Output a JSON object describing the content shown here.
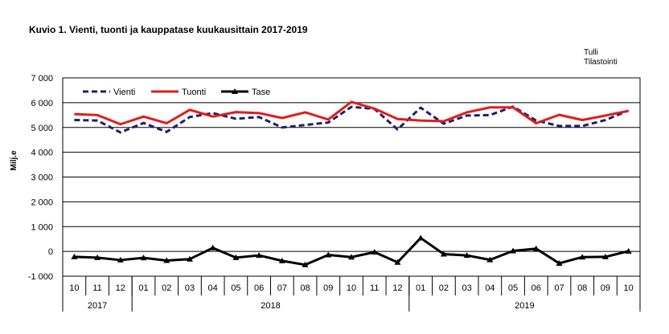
{
  "title": "Kuvio  1. Vienti, tuonti ja kauppatase kuukausittain 2017-2019",
  "source": [
    "Tulli",
    "Tilastointi"
  ],
  "chart_data": {
    "type": "line",
    "ylabel": "Milj.e",
    "ylim": [
      -1000,
      7000
    ],
    "yticks": [
      -1000,
      0,
      1000,
      2000,
      3000,
      4000,
      5000,
      6000,
      7000
    ],
    "ytick_labels": [
      "-1 000",
      "0",
      "1 000",
      "2 000",
      "3 000",
      "4 000",
      "5 000",
      "6 000",
      "7 000"
    ],
    "grid": true,
    "legend_position": "top-left",
    "categories": [
      "10",
      "11",
      "12",
      "01",
      "02",
      "03",
      "04",
      "05",
      "06",
      "07",
      "08",
      "09",
      "10",
      "11",
      "12",
      "01",
      "02",
      "03",
      "04",
      "05",
      "06",
      "07",
      "08",
      "09",
      "10"
    ],
    "years": [
      {
        "label": "2017",
        "span": 3
      },
      {
        "label": "2018",
        "span": 12
      },
      {
        "label": "2019",
        "span": 10
      }
    ],
    "series": [
      {
        "name": "Vienti",
        "color": "#1f1f6e",
        "style": "dashed",
        "values": [
          5300,
          5280,
          4800,
          5180,
          4820,
          5420,
          5580,
          5350,
          5420,
          5000,
          5100,
          5200,
          5830,
          5750,
          4920,
          5800,
          5150,
          5480,
          5500,
          5840,
          5280,
          5060,
          5060,
          5300,
          5680
        ]
      },
      {
        "name": "Tuonti",
        "color": "#e31b1b",
        "style": "solid",
        "values": [
          5540,
          5500,
          5130,
          5440,
          5170,
          5710,
          5440,
          5620,
          5580,
          5380,
          5610,
          5320,
          6030,
          5760,
          5340,
          5280,
          5250,
          5610,
          5810,
          5810,
          5170,
          5510,
          5300,
          5480,
          5670
        ]
      },
      {
        "name": "Tase",
        "color": "#000000",
        "style": "solid-triangle",
        "values": [
          -220,
          -250,
          -350,
          -260,
          -370,
          -310,
          140,
          -250,
          -160,
          -380,
          -540,
          -140,
          -230,
          -30,
          -440,
          540,
          -110,
          -160,
          -340,
          20,
          110,
          -480,
          -230,
          -220,
          10
        ]
      }
    ]
  }
}
